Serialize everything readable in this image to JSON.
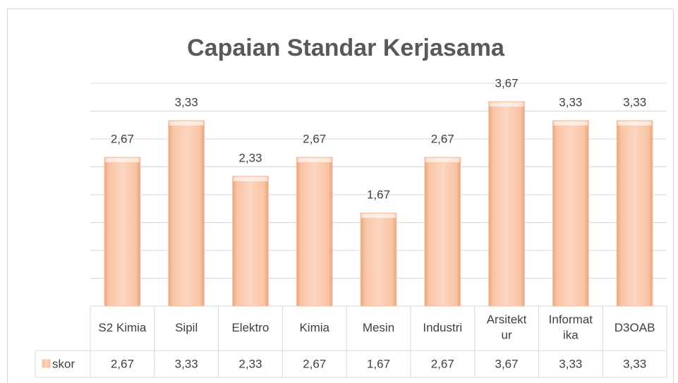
{
  "chart_data": {
    "type": "bar",
    "title": "Capaian Standar Kerjasama",
    "categories": [
      "S2 Kimia",
      "Sipil",
      "Elektro",
      "Kimia",
      "Mesin",
      "Industri",
      "Arsitektur",
      "Informatika",
      "D3OAB"
    ],
    "series": [
      {
        "name": "skor",
        "color": "#f8c4a4",
        "values": [
          2.67,
          3.33,
          2.33,
          2.67,
          1.67,
          2.67,
          3.67,
          3.33,
          3.33
        ],
        "value_labels": [
          "2,67",
          "3,33",
          "2,33",
          "2,67",
          "1,67",
          "2,67",
          "3,67",
          "3,33",
          "3,33"
        ]
      }
    ],
    "ylim": [
      0,
      4
    ],
    "yticks": [
      0,
      0.5,
      1,
      1.5,
      2,
      2.5,
      3,
      3.5,
      4
    ],
    "grid": true,
    "data_table": true
  }
}
